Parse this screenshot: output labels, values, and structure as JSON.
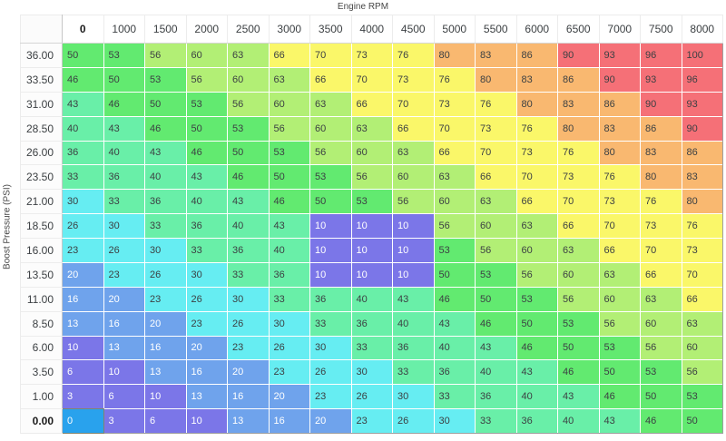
{
  "chart_data": {
    "type": "heatmap",
    "x_label": "Engine RPM",
    "y_label": "Boost Pressure (PSI)",
    "columns": [
      "0",
      "1000",
      "1500",
      "2000",
      "2500",
      "3000",
      "3500",
      "4000",
      "4500",
      "5000",
      "5500",
      "6000",
      "6500",
      "7000",
      "7500",
      "8000"
    ],
    "rows": [
      "36.00",
      "33.50",
      "31.00",
      "28.50",
      "26.00",
      "23.50",
      "21.00",
      "18.50",
      "16.00",
      "13.50",
      "11.00",
      "8.50",
      "6.00",
      "3.50",
      "1.00",
      "0.00"
    ],
    "values": [
      [
        50,
        53,
        56,
        60,
        63,
        66,
        70,
        73,
        76,
        80,
        83,
        86,
        90,
        93,
        96,
        100
      ],
      [
        46,
        50,
        53,
        56,
        60,
        63,
        66,
        70,
        73,
        76,
        80,
        83,
        86,
        90,
        93,
        96
      ],
      [
        43,
        46,
        50,
        53,
        56,
        60,
        63,
        66,
        70,
        73,
        76,
        80,
        83,
        86,
        90,
        93
      ],
      [
        40,
        43,
        46,
        50,
        53,
        56,
        60,
        63,
        66,
        70,
        73,
        76,
        80,
        83,
        86,
        90
      ],
      [
        36,
        40,
        43,
        46,
        50,
        53,
        56,
        60,
        63,
        66,
        70,
        73,
        76,
        80,
        83,
        86
      ],
      [
        33,
        36,
        40,
        43,
        46,
        50,
        53,
        56,
        60,
        63,
        66,
        70,
        73,
        76,
        80,
        83
      ],
      [
        30,
        33,
        36,
        40,
        43,
        46,
        50,
        53,
        56,
        60,
        63,
        66,
        70,
        73,
        76,
        80
      ],
      [
        26,
        30,
        33,
        36,
        40,
        43,
        10,
        10,
        10,
        56,
        60,
        63,
        66,
        70,
        73,
        76
      ],
      [
        23,
        26,
        30,
        33,
        36,
        40,
        10,
        10,
        10,
        53,
        56,
        60,
        63,
        66,
        70,
        73
      ],
      [
        20,
        23,
        26,
        30,
        33,
        36,
        10,
        10,
        10,
        50,
        53,
        56,
        60,
        63,
        66,
        70
      ],
      [
        16,
        20,
        23,
        26,
        30,
        33,
        36,
        40,
        43,
        46,
        50,
        53,
        56,
        60,
        63,
        66
      ],
      [
        13,
        16,
        20,
        23,
        26,
        30,
        33,
        36,
        40,
        43,
        46,
        50,
        53,
        56,
        60,
        63
      ],
      [
        10,
        13,
        16,
        20,
        23,
        26,
        30,
        33,
        36,
        40,
        43,
        46,
        50,
        53,
        56,
        60
      ],
      [
        6,
        10,
        13,
        16,
        20,
        23,
        26,
        30,
        33,
        36,
        40,
        43,
        46,
        50,
        53,
        56
      ],
      [
        3,
        6,
        10,
        13,
        16,
        20,
        23,
        26,
        30,
        33,
        36,
        40,
        43,
        46,
        50,
        53
      ],
      [
        0,
        3,
        6,
        10,
        13,
        16,
        20,
        23,
        26,
        30,
        33,
        36,
        40,
        43,
        46,
        50
      ]
    ],
    "color_scale": [
      {
        "max": 12,
        "bg": "#7b76e8",
        "text": "#ffffff"
      },
      {
        "max": 22,
        "bg": "#6fa3ec",
        "text": "#ffffff"
      },
      {
        "max": 32,
        "bg": "#66edf2",
        "text": "#3c4043"
      },
      {
        "max": 45,
        "bg": "#69efa8",
        "text": "#3c4043"
      },
      {
        "max": 55,
        "bg": "#62ea70",
        "text": "#3c4043"
      },
      {
        "max": 65,
        "bg": "#b2ef75",
        "text": "#3c4043"
      },
      {
        "max": 79,
        "bg": "#faf769",
        "text": "#3c4043"
      },
      {
        "max": 89,
        "bg": "#f9b870",
        "text": "#3c4043"
      },
      {
        "max": 100,
        "bg": "#f57077",
        "text": "#3c4043"
      }
    ],
    "selected": {
      "row_index": 15,
      "col_index": 0,
      "value": 0,
      "bg": "#29a2ed",
      "border": "#84846c",
      "text": "#ffffff"
    }
  }
}
